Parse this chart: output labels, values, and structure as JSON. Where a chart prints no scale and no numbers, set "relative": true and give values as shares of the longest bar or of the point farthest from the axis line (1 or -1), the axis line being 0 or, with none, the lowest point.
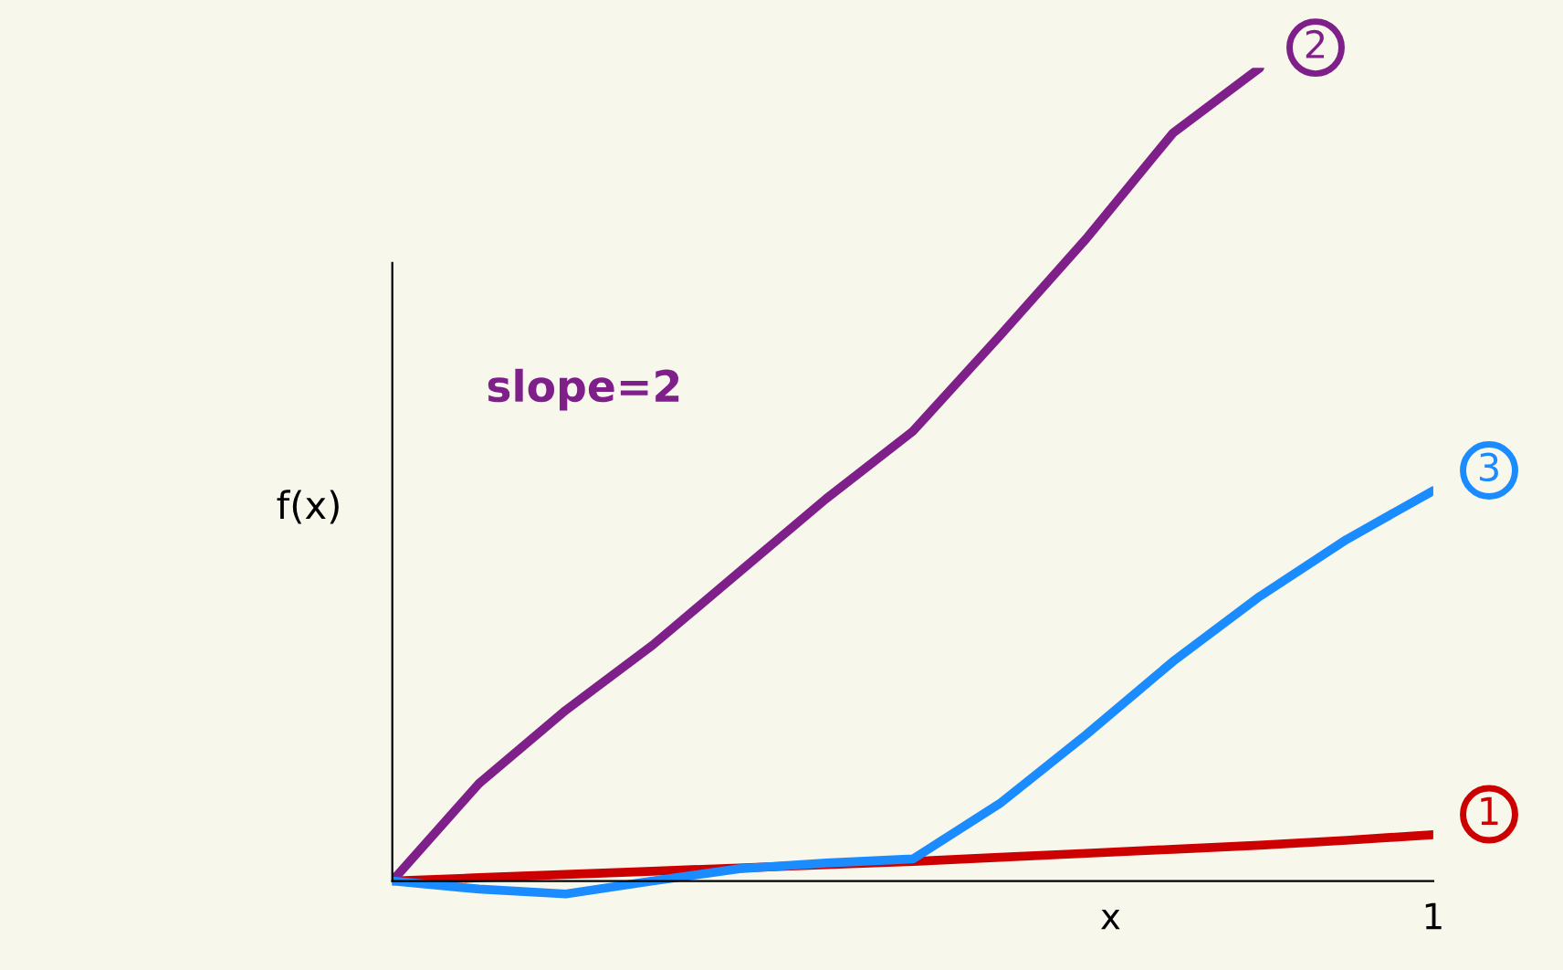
{
  "chart_data": {
    "type": "line",
    "relative": true,
    "xlabel": "x",
    "ylabel": "f(x)",
    "categories": [
      null,
      null,
      null,
      null,
      null,
      null,
      null,
      null,
      null,
      null,
      null,
      null,
      null
    ],
    "annotations": [
      "slope=2",
      "1"
    ],
    "series": [
      {
        "name": "1",
        "color": "#cc0000",
        "values": [
          0,
          0.004,
          0.008,
          0.012,
          0.016,
          0.02,
          0.024,
          0.029,
          0.034,
          0.039,
          0.044,
          0.05,
          0.057
        ]
      },
      {
        "name": "2",
        "color": "#7f1f8a",
        "values": [
          0,
          0.12,
          0.21,
          0.29,
          0.38,
          0.47,
          0.553,
          0.67,
          0.79,
          0.92,
          1,
          null,
          null
        ]
      },
      {
        "name": "3",
        "color": "#1a8cff",
        "values": [
          0,
          -0.01,
          -0.016,
          0,
          0.015,
          0.022,
          0.027,
          0.095,
          0.18,
          0.27,
          0.35,
          0.42,
          0.48
        ]
      }
    ]
  }
}
